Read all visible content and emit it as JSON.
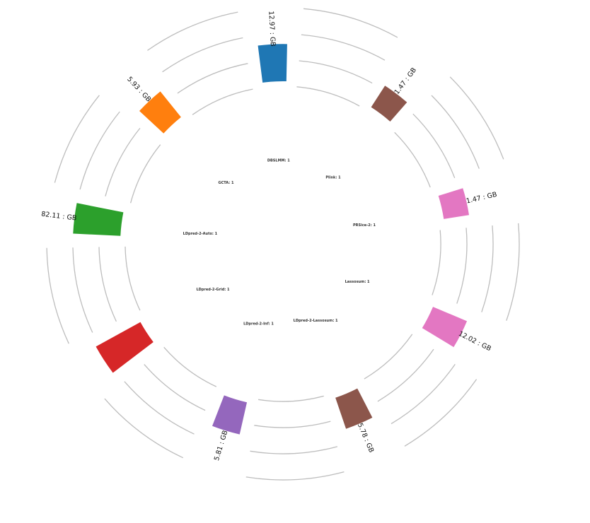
{
  "chart_data": {
    "type": "radial_bar",
    "title": "",
    "grid": true,
    "categories": [
      "Plink",
      "PRSice-2",
      "Lassosum",
      "LDpred-2-Lassosum",
      "LDpred-2-Inf",
      "LDpred-2-Grid",
      "LDpred-2-Auto",
      "GCTA",
      "DBSLMM"
    ],
    "inner_labels": [
      "Plink: 1",
      "PRSice-2: 1",
      "Lassosum: 1",
      "LDpred-2-Lassosum: 1",
      "LDpred-2-Inf: 1",
      "LDpred-2-Grid: 1",
      "LDpred-2-Auto: 1",
      "GCTA: 1",
      "DBSLMM: 1"
    ],
    "values": [
      1.47,
      1.47,
      12.02,
      5.78,
      5.81,
      150.0,
      82.11,
      5.93,
      12.97
    ],
    "value_labels": [
      "1.47 : GB",
      "1.47 : GB",
      "12.02 : GB",
      "5.78 : GB",
      "5.81 : GB",
      "",
      "82.11 : GB",
      "5.93 : GB",
      "12.97 : GB"
    ],
    "colors": [
      "#8c564b",
      "#e377c2",
      "#e377c2",
      "#8c564b",
      "#9467bd",
      "#d62728",
      "#2ca02c",
      "#ff7f0e",
      "#1f77b4"
    ]
  }
}
